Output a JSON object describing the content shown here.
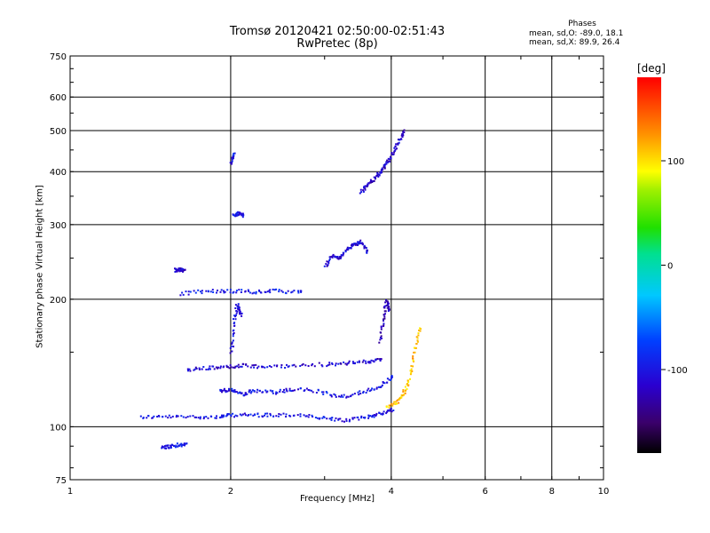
{
  "title_line1": "Tromsø 20120421 02:50:00-02:51:43",
  "title_line2": "RwPretec (8p)",
  "phases": {
    "title": "Phases",
    "line_o": "mean, sd,O: -89.0, 18.1",
    "line_x": "mean, sd,X:  89.9, 26.4"
  },
  "colorbar": {
    "title": "[deg]",
    "ticks": [
      "100",
      "0",
      "-100"
    ],
    "tick_values": [
      100,
      0,
      -100
    ],
    "range": [
      -180,
      180
    ]
  },
  "chart_data": {
    "type": "scatter",
    "title": "Tromsø 20120421 02:50:00-02:51:43",
    "subtitle": "RwPretec (8p)",
    "xlabel": "Frequency [MHz]",
    "ylabel": "Stationary phase Virtual Height [km]",
    "x_scale": "log",
    "y_scale": "log",
    "xlim": [
      1,
      10
    ],
    "ylim": [
      75,
      750
    ],
    "grid": true,
    "x_ticks": [
      1,
      2,
      4,
      6,
      8,
      10
    ],
    "x_tick_labels": [
      "1",
      "2",
      "4",
      "6",
      "8",
      "10"
    ],
    "y_ticks": [
      75,
      100,
      200,
      300,
      400,
      500,
      600,
      750
    ],
    "y_tick_labels": [
      "75",
      "100",
      "200",
      "300",
      "400",
      "500",
      "600",
      "750"
    ],
    "color_by": "phase [deg]",
    "traces": [
      {
        "x": [
          1.35,
          1.5,
          1.7,
          1.9,
          2.0,
          2.2,
          2.4,
          2.7,
          3.0,
          3.3,
          3.6,
          3.8,
          4.0
        ],
        "y": [
          106,
          106,
          106,
          106,
          107,
          107,
          107,
          107,
          105,
          104,
          106,
          108,
          110
        ],
        "phase": -100
      },
      {
        "x": [
          1.48,
          1.52,
          1.58,
          1.64
        ],
        "y": [
          90,
          90,
          91,
          91
        ],
        "phase": -100
      },
      {
        "x": [
          1.65,
          1.8,
          1.95,
          2.1,
          2.3,
          2.6,
          3.0,
          3.3,
          3.6,
          3.8
        ],
        "y": [
          137,
          138,
          139,
          140,
          139,
          140,
          141,
          142,
          143,
          145
        ],
        "phase": -110
      },
      {
        "x": [
          1.9,
          2.0,
          2.1,
          2.2,
          2.4,
          2.6,
          2.9,
          3.2,
          3.5,
          3.8,
          4.0
        ],
        "y": [
          122,
          123,
          120,
          122,
          121,
          123,
          122,
          118,
          121,
          125,
          132
        ],
        "phase": -100
      },
      {
        "x": [
          1.57,
          1.6,
          1.63
        ],
        "y": [
          235,
          236,
          235
        ],
        "phase": -110
      },
      {
        "x": [
          1.6,
          1.8,
          2.0,
          2.2,
          2.4,
          2.7
        ],
        "y": [
          207,
          210,
          210,
          209,
          210,
          209
        ],
        "phase": -95
      },
      {
        "x": [
          2.0,
          2.02,
          2.05,
          2.08
        ],
        "y": [
          150,
          175,
          195,
          185
        ],
        "phase": -105
      },
      {
        "x": [
          3.0,
          3.1,
          3.2,
          3.3,
          3.4,
          3.5,
          3.6
        ],
        "y": [
          240,
          255,
          250,
          265,
          270,
          275,
          260
        ],
        "phase": -110
      },
      {
        "x": [
          3.5,
          3.6,
          3.7,
          3.8,
          3.9,
          4.0,
          4.1,
          4.2
        ],
        "y": [
          360,
          375,
          385,
          400,
          420,
          440,
          470,
          500
        ],
        "phase": -115
      },
      {
        "x": [
          3.8,
          3.85,
          3.9,
          3.95
        ],
        "y": [
          160,
          180,
          200,
          190
        ],
        "phase": -120
      },
      {
        "x": [
          3.9,
          4.1,
          4.2,
          4.3,
          4.4,
          4.5
        ],
        "y": [
          112,
          115,
          120,
          130,
          150,
          170
        ],
        "phase": 110
      },
      {
        "x": [
          2.0,
          2.02
        ],
        "y": [
          420,
          440
        ],
        "phase": -100
      },
      {
        "x": [
          2.02,
          2.06,
          2.1
        ],
        "y": [
          318,
          320,
          317
        ],
        "phase": -100
      }
    ]
  }
}
